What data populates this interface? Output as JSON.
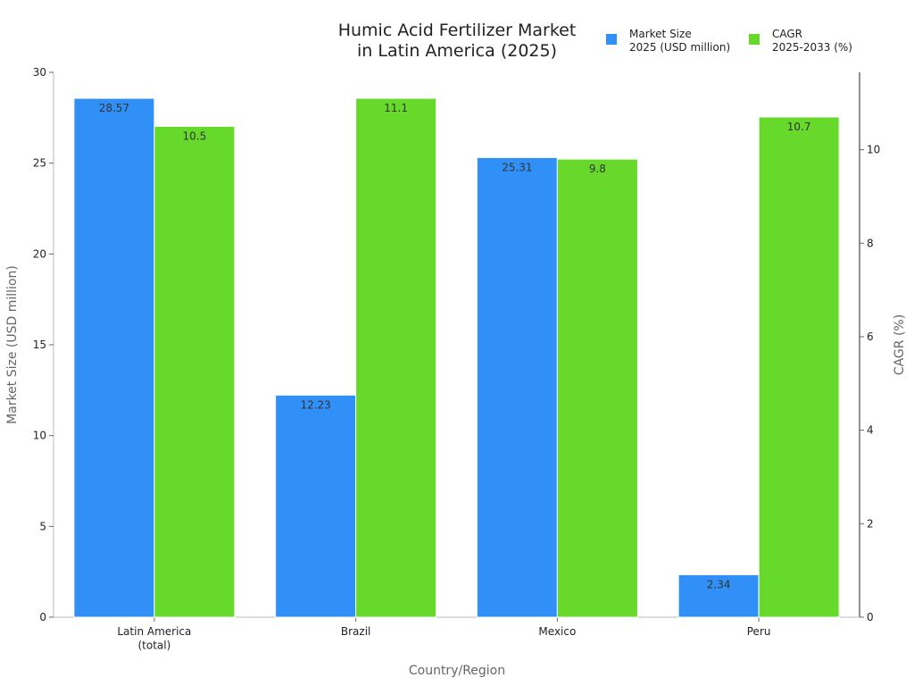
{
  "chart_data": {
    "type": "bar",
    "title": "Humic Acid Fertilizer Market\nin Latin America (2025)",
    "x_label": "Country/Region",
    "y_label": "Market Size (USD million)",
    "y2_label": "CAGR (%)",
    "categories": [
      "Latin America\n(total)",
      "Brazil",
      "Mexico",
      "Peru"
    ],
    "series": [
      {
        "name": "Market Size\n2025 (USD million)",
        "color": "#3190f7",
        "values": [
          28.57,
          12.23,
          25.31,
          2.34
        ]
      },
      {
        "name": "CAGR\n2025-2033 (%)",
        "color": "#66d92a",
        "axis": "y2",
        "values": [
          10.5,
          11.1,
          9.8,
          10.7
        ]
      }
    ],
    "ylim": [
      0,
      30
    ],
    "yticks": [
      0,
      5,
      10,
      15,
      20,
      25,
      30
    ],
    "y2lim": [
      0,
      11.655
    ],
    "y2ticks": [
      0,
      2,
      4,
      6,
      8,
      10
    ],
    "legend": "top-right",
    "grid": false
  }
}
